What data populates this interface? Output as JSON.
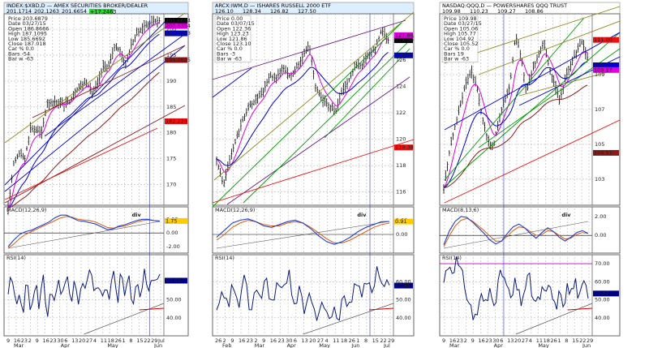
{
  "colors": {
    "price_bar": "#000000",
    "ma_fast": "#e000e0",
    "ma_mid": "#0000cc",
    "ma_slow": "#8b1a1a",
    "ma_long": "#ee1111",
    "macd_line": "#1f3fcf",
    "macd_signal": "#e05a10",
    "rsi_line": "#0a1a7a",
    "trend_blue": "#0000cc",
    "trend_olive": "#8a8a20",
    "trend_brown": "#8b1a1a",
    "trend_green": "#009900",
    "trend_purple": "#6a1a8a",
    "annotation_red": "#dd0000",
    "rsi_magenta": "#cc00cc"
  },
  "panels": [
    {
      "header": {
        "symbol": "INDEX:$XBD,D",
        "title": "AMEX SECURITIES BROKER/DEALER",
        "quote_fields": [
          "201.1714",
          "202.1263",
          "201.6654"
        ],
        "last_badge": "+17.2463"
      },
      "ohlc_box": [
        "Price  203.6879",
        "Date   03/27/15",
        "Open   186.8666",
        "High   187.1095",
        "Low    185.6692",
        "Close  187.018",
        "Car %  0.0",
        "Bars   -54",
        "Bar w  -63"
      ],
      "price_axis": {
        "ticks": [
          170,
          175,
          180,
          185,
          190,
          195,
          200
        ],
        "ylim": [
          166,
          203
        ]
      },
      "price_tags": [
        {
          "value": 201.6654,
          "label": "201.6654",
          "color": "#000000"
        },
        {
          "value": 200.6354,
          "label": "200.6354",
          "color": "#e000e0"
        },
        {
          "value": 199.2253,
          "label": "199.2253",
          "color": "#0000cc"
        },
        {
          "value": 194.0625,
          "label": "194.0625",
          "color": "#8b1a1a"
        },
        {
          "value": 182.229,
          "label": "182.229",
          "color": "#ee1111"
        }
      ],
      "x_labels": [
        "9",
        "16",
        "23",
        "2",
        "9",
        "16",
        "23",
        "30",
        "6",
        "13",
        "20",
        "27",
        "4",
        "11",
        "18",
        "26",
        "1",
        "8",
        "15",
        "22",
        "29",
        "Jul"
      ],
      "month_labels": [
        "Mar",
        "Apr",
        "May",
        "Jun"
      ],
      "macd": {
        "label": "MACD(12,26,9)",
        "ticks": [
          "2.00",
          "0.00",
          "-2.00"
        ],
        "tag": "1.75",
        "annotation": "div"
      },
      "rsi": {
        "label": "RSI(14)",
        "ticks": [
          "60.00",
          "50.00",
          "40.00"
        ],
        "tag": "60.61"
      }
    },
    {
      "header": {
        "symbol": "ARCX:IWM,D",
        "title": "ISHARES RUSSELL 2000 ETF",
        "quote_fields": [
          "126.10",
          "128.34",
          "126.82",
          "127.50"
        ],
        "last_badge": ""
      },
      "ohlc_box": [
        "Price  0.00",
        "Date   03/07/15",
        "Open   122.36",
        "High   123.23",
        "Low    121.86",
        "Close  123.10",
        "Car %  0.0",
        "Bars   -3",
        "Bar w  -63"
      ],
      "price_axis": {
        "ticks": [
          116,
          118,
          120,
          122,
          124,
          126
        ],
        "ylim": [
          115,
          129.5
        ]
      },
      "price_tags": [
        {
          "value": 127.5,
          "label": "127.50",
          "color": "#000000"
        },
        {
          "value": 127.88,
          "label": "127.88",
          "color": "#e000e0"
        },
        {
          "value": 126.35,
          "label": "126.35",
          "color": "#0000cc"
        },
        {
          "value": 119.38,
          "label": "119.38",
          "color": "#ee1111"
        }
      ],
      "x_labels": [
        "26",
        "2",
        "9",
        "16",
        "23",
        "2",
        "9",
        "16",
        "23",
        "30",
        "6",
        "13",
        "20",
        "27",
        "4",
        "11",
        "18",
        "26",
        "1",
        "8",
        "15",
        "22",
        "29"
      ],
      "month_labels": [
        "Feb",
        "Mar",
        "Apr",
        "May",
        "Jun",
        "Jul"
      ],
      "macd": {
        "label": "MACD(12,26,9)",
        "ticks": [
          "1.00",
          "0.00"
        ],
        "tag": "0.91",
        "annotation": "div"
      },
      "rsi": {
        "label": "RSI(14)",
        "ticks": [
          "60.00",
          "50.00",
          "40.00"
        ],
        "tag": "57.88"
      }
    },
    {
      "header": {
        "symbol": "NASDAQ:QQQ,D",
        "title": "POWERSHARES QQQ TRUST",
        "quote_fields": [
          "109.98",
          "110.23",
          "109.27",
          "108.86"
        ],
        "last_badge": ""
      },
      "ohlc_box": [
        "Price  109.98",
        "Date   03/27/15",
        "Open   105.06",
        "High   105.77",
        "Low    104.92",
        "Close  105.52",
        "Car %  0.0",
        "Bars   19",
        "Bar w  -63"
      ],
      "price_axis": {
        "ticks": [
          103,
          105,
          107,
          109,
          111
        ],
        "ylim": [
          101.5,
          112.5
        ]
      },
      "price_tags": [
        {
          "value": 111.0,
          "label": "111.00",
          "color": "#ee1111"
        },
        {
          "value": 109.54,
          "label": "109.54",
          "color": "#0000cc"
        },
        {
          "value": 109.27,
          "label": "109.27",
          "color": "#e000e0"
        },
        {
          "value": 104.51,
          "label": "104.51",
          "color": "#8b1a1a"
        }
      ],
      "x_labels": [
        "9",
        "16",
        "23",
        "2",
        "9",
        "16",
        "23",
        "30",
        "6",
        "13",
        "20",
        "27",
        "4",
        "11",
        "18",
        "26",
        "1",
        "8",
        "15",
        "22",
        "29"
      ],
      "month_labels": [
        "Mar",
        "Apr",
        "May",
        "Jun"
      ],
      "macd": {
        "label": "MACD(8,13,6)",
        "ticks": [
          "2.00",
          "0.00"
        ],
        "tag": "",
        "annotation": "div"
      },
      "rsi": {
        "label": "RSI(14)",
        "ticks": [
          "70.00",
          "60.00",
          "50.00",
          "40.00"
        ],
        "tag": "53.47"
      }
    }
  ],
  "chart_data": [
    {
      "type": "line",
      "title": "INDEX:$XBD,D AMEX SECURITIES BROKER/DEALER",
      "xlabel": "",
      "ylabel": "",
      "ylim": [
        166,
        203
      ],
      "price_path": [
        165.5,
        174,
        176,
        175,
        181,
        180.5,
        180,
        185.8,
        186,
        186,
        185.5,
        186,
        188.2,
        189,
        190,
        187.5,
        189.5,
        192.8,
        193,
        196.5,
        196,
        193,
        197,
        199,
        200.5,
        201,
        201.5,
        201.7
      ],
      "series": [
        {
          "name": "MACD",
          "values": [
            -2,
            -1,
            -0.2,
            0.2,
            0.4,
            0.8,
            1.2,
            1.6,
            2.2,
            2.6,
            2.6,
            2.2,
            1.8,
            1.7,
            1.5,
            1.3,
            0.9,
            0.5,
            0.6,
            1.0,
            1.2,
            1.5,
            1.8,
            2.0,
            2.0,
            1.8,
            1.75
          ]
        },
        {
          "name": "Signal",
          "values": [
            -2.2,
            -1.6,
            -0.8,
            -0.2,
            0.2,
            0.6,
            1.0,
            1.4,
            1.8,
            2.2,
            2.4,
            2.3,
            2.0,
            1.9,
            1.8,
            1.6,
            1.2,
            0.8,
            0.7,
            0.9,
            1.0,
            1.3,
            1.6,
            1.8,
            1.9,
            1.8,
            1.7
          ]
        },
        {
          "name": "RSI",
          "values": [
            54,
            62,
            44,
            56,
            46,
            60,
            42,
            58,
            48,
            62,
            40,
            60,
            46,
            58,
            50,
            62,
            48,
            60,
            44,
            58,
            52,
            66,
            55,
            63,
            48,
            60,
            52,
            68,
            46,
            64,
            56,
            60,
            48,
            62,
            55,
            66,
            50,
            62,
            58,
            61
          ]
        }
      ]
    },
    {
      "type": "line",
      "title": "ARCX:IWM,D ISHARES RUSSELL 2000 ETF",
      "xlabel": "",
      "ylabel": "",
      "ylim": [
        115,
        129.5
      ],
      "price_path": [
        118.5,
        116.5,
        118.5,
        120,
        121.5,
        122.5,
        123,
        123.5,
        124.8,
        124.6,
        125.5,
        124.8,
        125.3,
        126.2,
        127.2,
        124,
        123,
        122.6,
        122,
        123.6,
        124.4,
        125.5,
        125.6,
        126.4,
        126.8,
        128.3,
        127.5
      ],
      "series": [
        {
          "name": "MACD",
          "values": [
            -0.2,
            0.3,
            0.8,
            1.0,
            1.1,
            0.9,
            0.6,
            0.5,
            0.7,
            0.9,
            1.0,
            0.8,
            0.4,
            -0.1,
            -0.5,
            -0.7,
            -0.5,
            -0.2,
            0.2,
            0.5,
            0.7,
            0.9,
            0.91
          ]
        },
        {
          "name": "Signal",
          "values": [
            -0.4,
            0.0,
            0.5,
            0.8,
            1.0,
            0.9,
            0.7,
            0.6,
            0.6,
            0.8,
            0.9,
            0.8,
            0.5,
            0.1,
            -0.3,
            -0.6,
            -0.6,
            -0.4,
            -0.1,
            0.2,
            0.5,
            0.7,
            0.8
          ]
        },
        {
          "name": "RSI",
          "values": [
            40,
            52,
            46,
            58,
            48,
            60,
            44,
            56,
            50,
            62,
            46,
            60,
            52,
            64,
            48,
            58,
            42,
            54,
            38,
            50,
            36,
            46,
            40,
            52,
            48,
            58,
            54,
            62,
            58,
            66,
            60,
            57.88
          ]
        }
      ]
    },
    {
      "type": "line",
      "title": "NASDAQ:QQQ,D POWERSHARES QQQ TRUST",
      "xlabel": "",
      "ylabel": "",
      "ylim": [
        101.5,
        112.5
      ],
      "price_path": [
        102.5,
        104.5,
        106,
        107.2,
        108.5,
        109.2,
        108.3,
        106.5,
        105.2,
        104.8,
        106.5,
        107.5,
        108.4,
        111.3,
        110,
        108,
        109.2,
        110,
        110.9,
        109.5,
        108.5,
        107.5,
        108.8,
        109.6,
        110.3,
        110.9,
        109.98
      ],
      "series": [
        {
          "name": "MACD",
          "values": [
            -1,
            0.5,
            1.5,
            2.0,
            1.9,
            1.4,
            0.8,
            0.2,
            -0.5,
            -0.9,
            -0.6,
            0.2,
            0.9,
            1.2,
            0.8,
            0.2,
            -0.3,
            0.3,
            0.8,
            0.4,
            -0.2,
            -0.6,
            -0.2,
            0.3,
            0.5,
            0.2
          ]
        },
        {
          "name": "Signal",
          "values": [
            -1.2,
            0.0,
            1.0,
            1.6,
            1.8,
            1.5,
            1.0,
            0.5,
            -0.1,
            -0.6,
            -0.6,
            -0.1,
            0.5,
            0.9,
            0.8,
            0.4,
            0.0,
            0.1,
            0.5,
            0.4,
            0.0,
            -0.4,
            -0.3,
            0.1,
            0.3,
            0.2
          ]
        },
        {
          "name": "RSI",
          "values": [
            60,
            70,
            68,
            72,
            64,
            58,
            48,
            40,
            44,
            52,
            46,
            58,
            50,
            60,
            66,
            54,
            50,
            60,
            48,
            56,
            62,
            52,
            46,
            56,
            50,
            60,
            44,
            52,
            48,
            56,
            54,
            60,
            50,
            58,
            53.47
          ]
        }
      ]
    }
  ]
}
